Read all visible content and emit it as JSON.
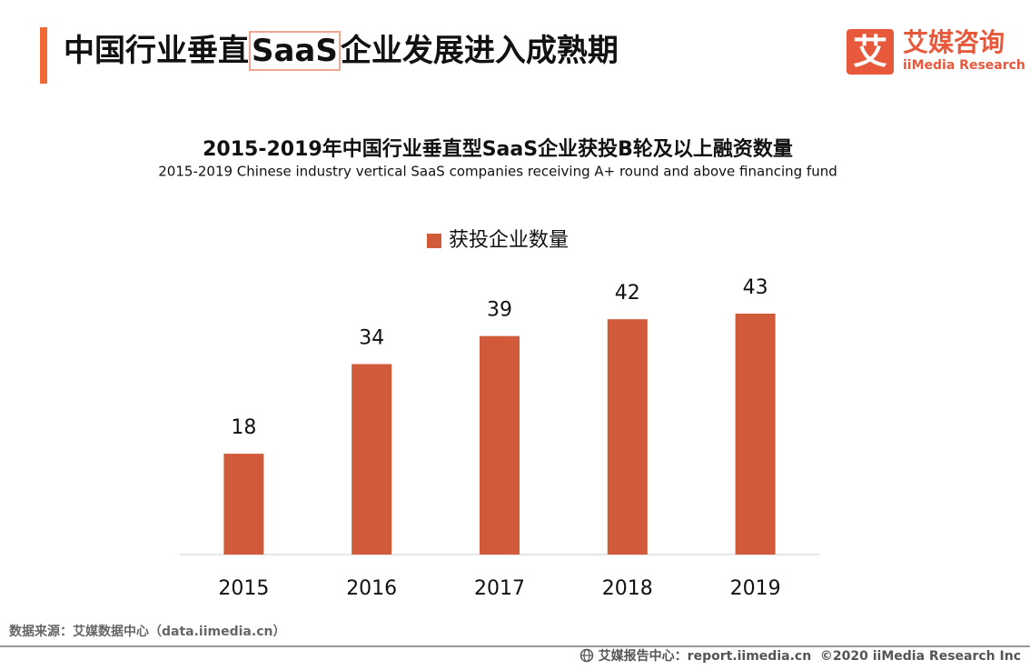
{
  "header": {
    "title_parts": [
      "中国行业垂直",
      "SaaS",
      "企业发展进入成熟期"
    ]
  },
  "logo": {
    "icon": "艾",
    "name": "艾媒咨询",
    "name_en": "iiMedia Research"
  },
  "chart_data": {
    "type": "bar",
    "title": "2015-2019年中国行业垂直型SaaS企业获投B轮及以上融资数量",
    "subtitle": "2015-2019 Chinese industry vertical SaaS companies receiving A+ round and above financing fund",
    "categories": [
      "2015",
      "2016",
      "2017",
      "2018",
      "2019"
    ],
    "series": [
      {
        "name": "获投企业数量",
        "color": "#d05a3a",
        "values": [
          18,
          34,
          39,
          42,
          43
        ]
      }
    ]
  },
  "source": "数据来源：艾媒数据中心（data.iimedia.cn）",
  "footer": {
    "report": "艾媒报告中心：report.iimedia.cn",
    "copyright": "©2020  iiMedia Research  Inc"
  }
}
